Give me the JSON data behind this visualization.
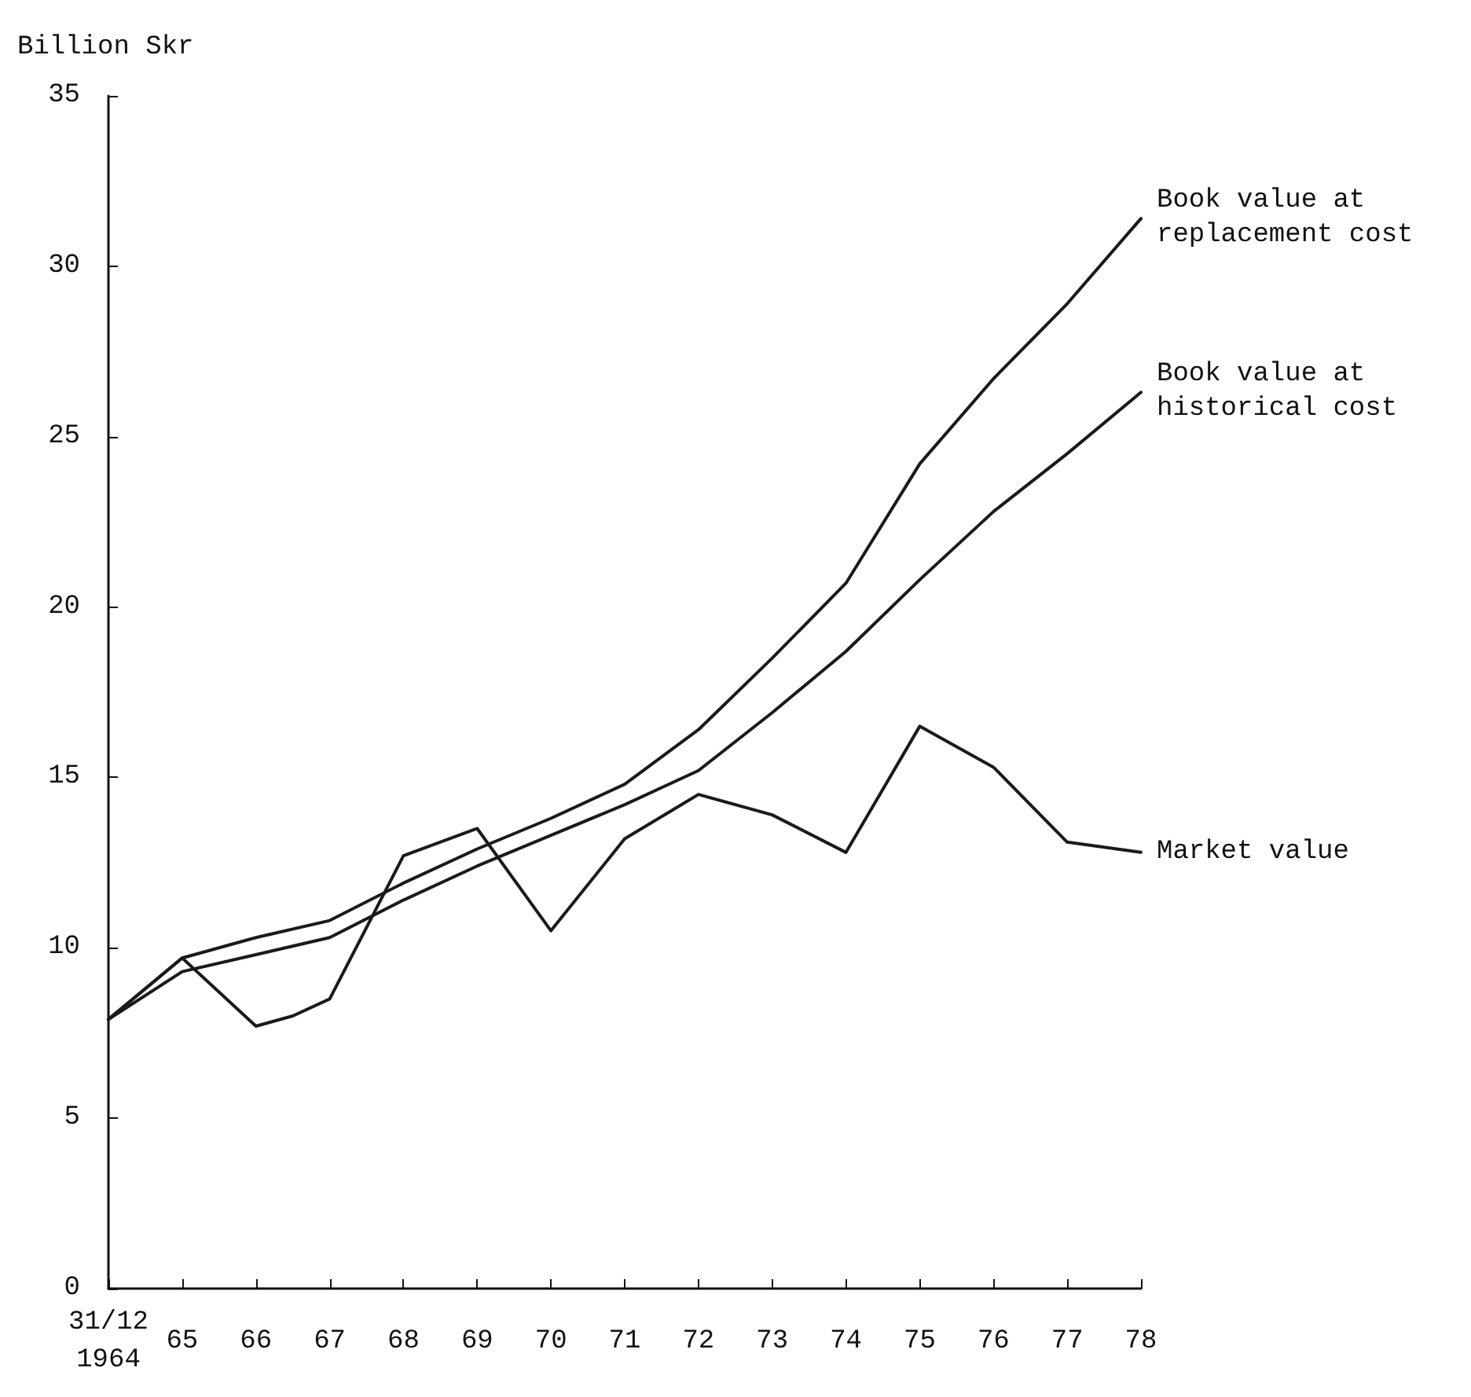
{
  "chart_data": {
    "type": "line",
    "ylabel": "Billion Skr",
    "xlim": [
      1964,
      1978
    ],
    "ylim": [
      0,
      35
    ],
    "xticks": [
      {
        "value": 1964,
        "label": "31/12\n1964"
      },
      {
        "value": 1965,
        "label": "65"
      },
      {
        "value": 1966,
        "label": "66"
      },
      {
        "value": 1967,
        "label": "67"
      },
      {
        "value": 1968,
        "label": "68"
      },
      {
        "value": 1969,
        "label": "69"
      },
      {
        "value": 1970,
        "label": "70"
      },
      {
        "value": 1971,
        "label": "71"
      },
      {
        "value": 1972,
        "label": "72"
      },
      {
        "value": 1973,
        "label": "73"
      },
      {
        "value": 1974,
        "label": "74"
      },
      {
        "value": 1975,
        "label": "75"
      },
      {
        "value": 1976,
        "label": "76"
      },
      {
        "value": 1977,
        "label": "77"
      },
      {
        "value": 1978,
        "label": "78"
      }
    ],
    "yticks": [
      0,
      5,
      10,
      15,
      20,
      25,
      30,
      35
    ],
    "grid": false,
    "legend": false,
    "marker": "none",
    "line_style": "solid",
    "series": [
      {
        "name": "Book value at replacement cost",
        "color": "#1a1a1a",
        "x": [
          1964,
          1965,
          1966,
          1967,
          1968,
          1969,
          1970,
          1971,
          1972,
          1973,
          1974,
          1975,
          1976,
          1977,
          1978
        ],
        "values": [
          7.9,
          9.7,
          10.3,
          10.8,
          11.9,
          12.9,
          13.8,
          14.8,
          16.4,
          18.5,
          20.7,
          24.2,
          26.7,
          28.9,
          31.4
        ]
      },
      {
        "name": "Book value at historical cost",
        "color": "#1a1a1a",
        "x": [
          1964,
          1965,
          1966,
          1967,
          1968,
          1969,
          1970,
          1971,
          1972,
          1973,
          1974,
          1975,
          1976,
          1977,
          1978
        ],
        "values": [
          7.9,
          9.3,
          9.8,
          10.3,
          11.4,
          12.4,
          13.3,
          14.2,
          15.2,
          16.9,
          18.7,
          20.8,
          22.8,
          24.5,
          26.3
        ]
      },
      {
        "name": "Market value",
        "color": "#1a1a1a",
        "x": [
          1964,
          1965,
          1966,
          1966.5,
          1967,
          1968,
          1969,
          1970,
          1971,
          1972,
          1973,
          1974,
          1975,
          1976,
          1977,
          1978
        ],
        "values": [
          7.9,
          9.7,
          7.7,
          8.0,
          8.5,
          12.7,
          13.5,
          10.5,
          13.2,
          14.5,
          13.9,
          12.8,
          16.5,
          15.3,
          13.1,
          12.8
        ]
      }
    ]
  }
}
